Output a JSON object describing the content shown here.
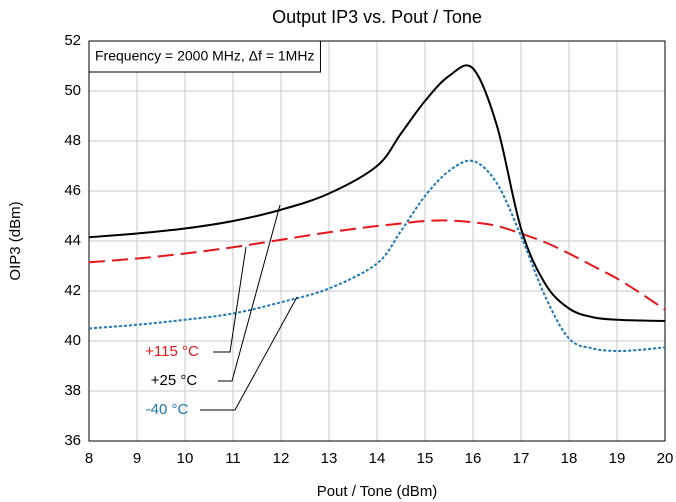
{
  "chart_data": {
    "type": "line",
    "title": "Output IP3 vs. Pout / Tone",
    "annotation": "Frequency = 2000 MHz, Δf = 1MHz",
    "xlabel": "Pout / Tone (dBm)",
    "ylabel": "OIP3 (dBm)",
    "x": [
      8,
      9,
      10,
      11,
      12,
      13,
      14,
      14.5,
      15,
      15.5,
      16,
      16.5,
      17,
      17.5,
      18,
      18.5,
      19,
      19.5,
      20
    ],
    "series": [
      {
        "name": "+115 °C",
        "color": "#e8161b",
        "dash": "dashed",
        "values": [
          43.15,
          43.3,
          43.5,
          43.75,
          44.05,
          44.35,
          44.6,
          44.7,
          44.8,
          44.82,
          44.75,
          44.6,
          44.3,
          43.95,
          43.5,
          43.0,
          42.5,
          41.9,
          41.25
        ]
      },
      {
        "name": "+25 °C",
        "color": "#000000",
        "dash": "solid",
        "values": [
          44.15,
          44.3,
          44.5,
          44.8,
          45.25,
          45.9,
          47.0,
          48.3,
          49.6,
          50.6,
          50.9,
          48.6,
          44.5,
          42.3,
          41.3,
          40.95,
          40.85,
          40.82,
          40.8
        ]
      },
      {
        "name": "-40 °C",
        "color": "#1f77b4",
        "dash": "dotted",
        "values": [
          40.5,
          40.65,
          40.85,
          41.1,
          41.55,
          42.1,
          43.1,
          44.4,
          45.8,
          46.8,
          47.2,
          46.3,
          44.2,
          41.8,
          40.1,
          39.7,
          39.6,
          39.65,
          39.75
        ]
      }
    ],
    "xlim": [
      8,
      20
    ],
    "xticks": [
      8,
      9,
      10,
      11,
      12,
      13,
      14,
      15,
      16,
      17,
      18,
      19,
      20
    ],
    "ylim": [
      36,
      52
    ],
    "yticks": [
      36,
      38,
      40,
      42,
      44,
      46,
      48,
      50,
      52
    ],
    "grid": true
  }
}
